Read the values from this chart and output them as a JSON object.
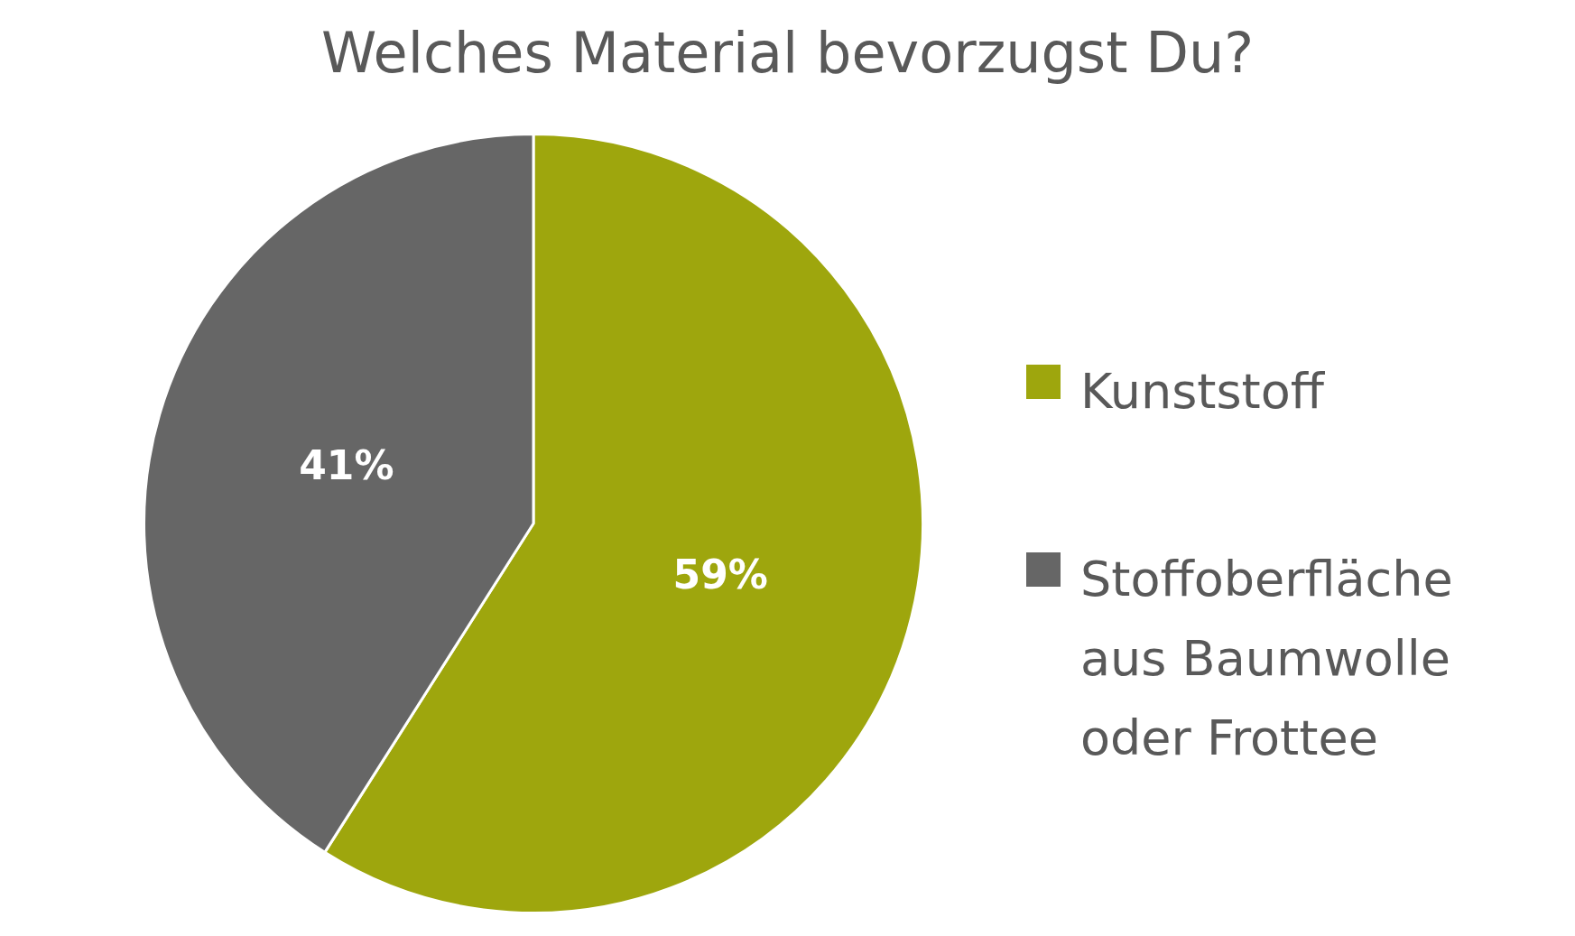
{
  "chart_data": {
    "type": "pie",
    "title": "Welches Material bevorzugst Du?",
    "categories": [
      "Kunststoff",
      "Stoffoberfläche aus Baumwolle oder Frottee"
    ],
    "values": [
      59,
      41
    ],
    "colors": [
      "#9ea60d",
      "#666666"
    ],
    "value_labels": [
      "59%",
      "41%"
    ],
    "legend": "right"
  }
}
